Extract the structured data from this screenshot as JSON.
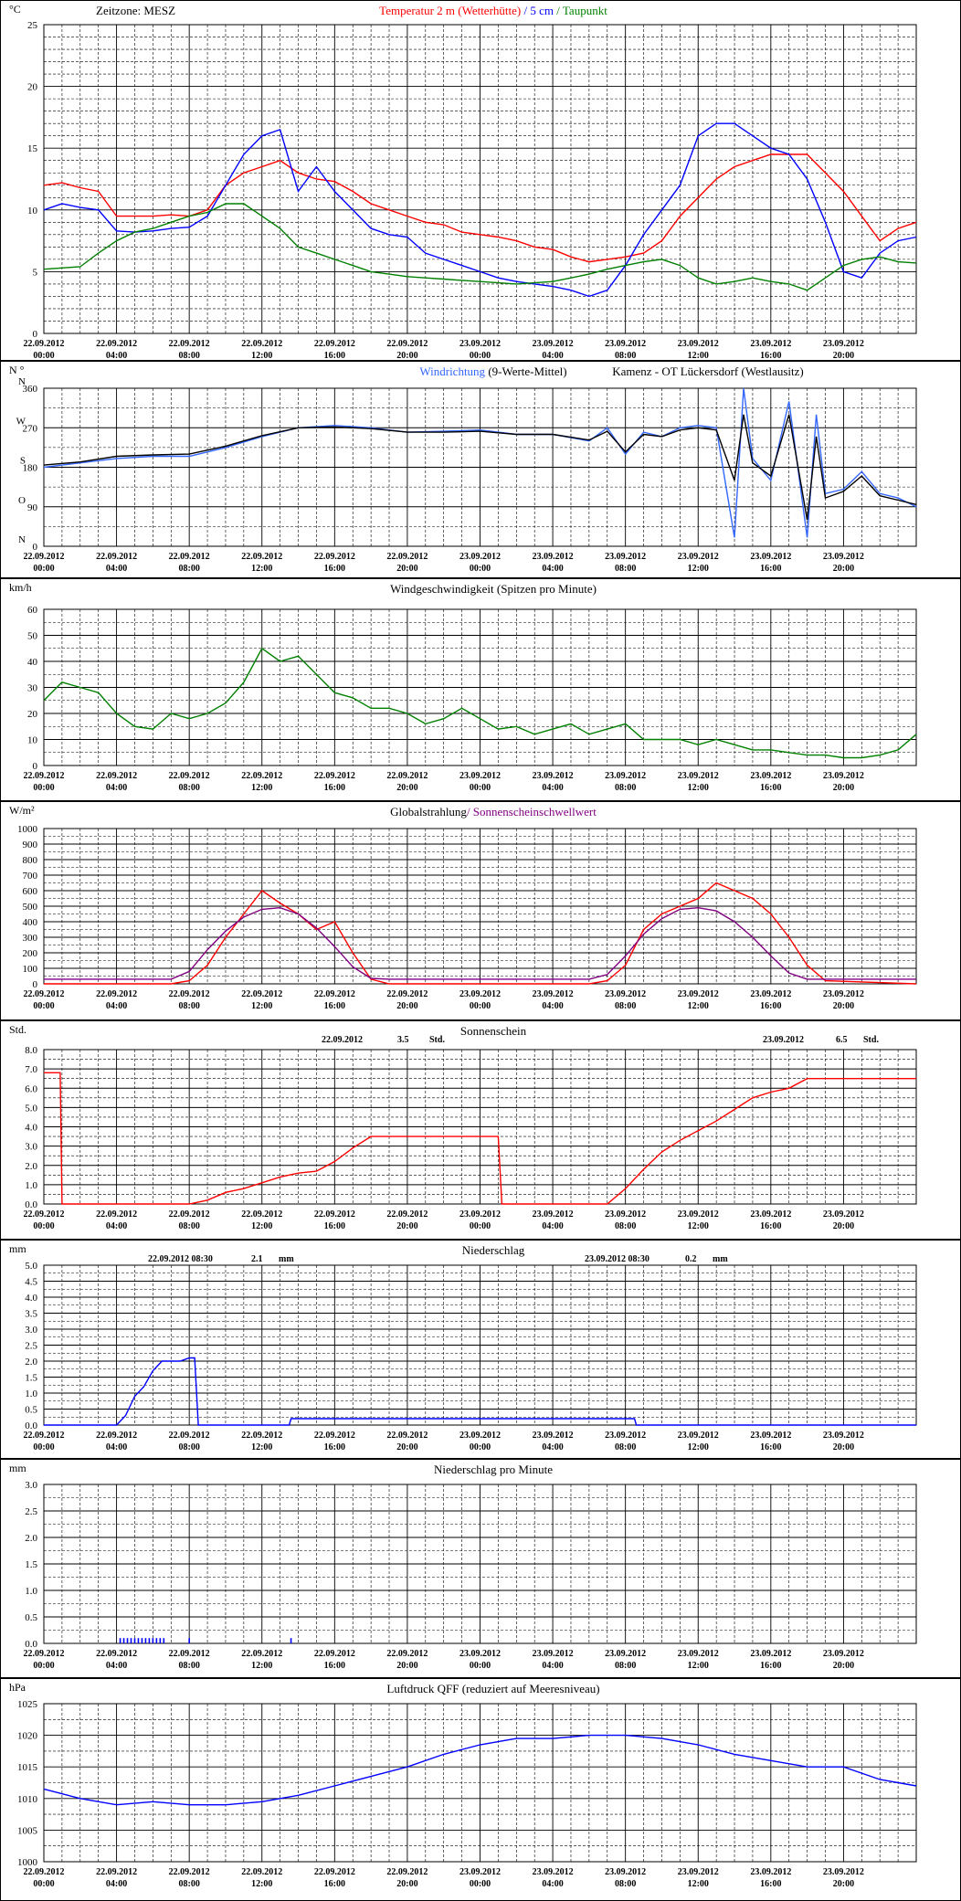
{
  "meta": {
    "timezone": "Zeitzone: MESZ",
    "station": "Kamenz - OT Lückersdorf (Westlausitz)"
  },
  "x_axis": {
    "tick_dates": [
      "22.09.2012",
      "22.09.2012",
      "22.09.2012",
      "22.09.2012",
      "22.09.2012",
      "22.09.2012",
      "23.09.2012",
      "23.09.2012",
      "23.09.2012",
      "23.09.2012",
      "23.09.2012",
      "23.09.2012"
    ],
    "tick_times": [
      "00:00",
      "04:00",
      "08:00",
      "12:00",
      "16:00",
      "20:00",
      "00:00",
      "04:00",
      "08:00",
      "12:00",
      "16:00",
      "20:00"
    ]
  },
  "chart_data": [
    {
      "id": "temperature",
      "type": "line",
      "unit": "°C",
      "title_parts": [
        {
          "text": "Temperatur 2 m (Wetterhütte)",
          "color": "#ff0000"
        },
        {
          "text": " / ",
          "color": "#0000ff"
        },
        {
          "text": "5 cm",
          "color": "#0000ff"
        },
        {
          "text": " / ",
          "color": "#008000"
        },
        {
          "text": "Taupunkt",
          "color": "#008000"
        }
      ],
      "ylim": [
        0,
        25
      ],
      "yticks": [
        "0",
        "5",
        "10",
        "15",
        "20",
        "25"
      ],
      "x_hours": [
        0,
        1,
        2,
        3,
        4,
        5,
        6,
        7,
        8,
        9,
        10,
        11,
        12,
        13,
        14,
        15,
        16,
        17,
        18,
        19,
        20,
        21,
        22,
        23,
        24,
        25,
        26,
        27,
        28,
        29,
        30,
        31,
        32,
        33,
        34,
        35,
        36,
        37,
        38,
        39,
        40,
        41,
        42,
        43,
        44,
        45,
        46,
        47,
        48
      ],
      "series": [
        {
          "name": "Temperatur 2 m (Wetterhütte)",
          "color": "#ff0000",
          "values": [
            12,
            12.2,
            11.8,
            11.5,
            9.5,
            9.5,
            9.5,
            9.6,
            9.5,
            10,
            12,
            13,
            13.5,
            14,
            13,
            12.5,
            12.3,
            11.5,
            10.5,
            10,
            9.5,
            9,
            8.8,
            8.2,
            8,
            7.8,
            7.5,
            7,
            6.8,
            6.2,
            5.8,
            6,
            6.2,
            6.5,
            7.5,
            9.5,
            11,
            12.5,
            13.5,
            14,
            14.5,
            14.5,
            14.5,
            13,
            11.5,
            9.5,
            7.5,
            8.5,
            9
          ]
        },
        {
          "name": "5 cm",
          "color": "#0000ff",
          "values": [
            10,
            10.5,
            10.2,
            10,
            8.3,
            8.2,
            8.3,
            8.5,
            8.6,
            9.5,
            12,
            14.5,
            16,
            16.5,
            11.5,
            13.5,
            11.5,
            10,
            8.5,
            8,
            7.8,
            6.5,
            6,
            5.5,
            5,
            4.5,
            4.2,
            4,
            3.8,
            3.5,
            3,
            3.5,
            5.5,
            8,
            10,
            12,
            16,
            17,
            17,
            16,
            15,
            14.5,
            12.5,
            9,
            5,
            4.5,
            6.5,
            7.5,
            7.8
          ]
        },
        {
          "name": "Taupunkt",
          "color": "#008000",
          "values": [
            5.2,
            5.3,
            5.4,
            6.5,
            7.5,
            8.2,
            8.5,
            9,
            9.5,
            9.8,
            10.5,
            10.5,
            9.5,
            8.5,
            7,
            6.5,
            6,
            5.5,
            5,
            4.8,
            4.6,
            4.5,
            4.4,
            4.3,
            4.2,
            4.1,
            4,
            4.1,
            4.2,
            4.5,
            4.8,
            5.2,
            5.5,
            5.8,
            6,
            5.5,
            4.5,
            4,
            4.2,
            4.5,
            4.2,
            4,
            3.5,
            4.5,
            5.5,
            6,
            6.2,
            5.8,
            5.7
          ]
        }
      ]
    },
    {
      "id": "wind_direction",
      "type": "line",
      "unit": "N °",
      "title_parts": [
        {
          "text": "Windrichtung",
          "color": "#3366ff"
        },
        {
          "text": " (9-Werte-Mittel)",
          "color": "#000000"
        }
      ],
      "ylim": [
        0,
        360
      ],
      "yticks": [
        "0",
        "90",
        "180",
        "270",
        "360"
      ],
      "ylabels_dir": [
        "N",
        "O",
        "S",
        "W",
        "N"
      ],
      "x_hours": [
        0,
        2,
        4,
        6,
        8,
        10,
        12,
        14,
        16,
        18,
        20,
        22,
        24,
        26,
        28,
        30,
        31,
        32,
        33,
        34,
        35,
        36,
        37,
        38,
        38.5,
        39,
        40,
        41,
        42,
        42.5,
        43,
        44,
        45,
        46,
        47,
        48
      ],
      "series": [
        {
          "name": "Windrichtung",
          "color": "#3366ff",
          "values": [
            180,
            190,
            200,
            205,
            205,
            225,
            250,
            270,
            275,
            270,
            260,
            262,
            265,
            255,
            255,
            240,
            270,
            210,
            260,
            250,
            270,
            275,
            270,
            20,
            360,
            200,
            150,
            330,
            20,
            300,
            120,
            130,
            170,
            120,
            110,
            90
          ]
        },
        {
          "name": "9-Werte-Mittel",
          "color": "#000000",
          "values": [
            185,
            192,
            205,
            208,
            210,
            228,
            252,
            270,
            272,
            268,
            260,
            260,
            262,
            255,
            255,
            242,
            262,
            215,
            255,
            250,
            265,
            270,
            265,
            150,
            300,
            190,
            160,
            300,
            60,
            250,
            110,
            125,
            160,
            115,
            105,
            95
          ]
        }
      ]
    },
    {
      "id": "wind_speed",
      "type": "line",
      "unit": "km/h",
      "title": "Windgeschwindigkeit (Spitzen pro Minute)",
      "ylim": [
        0,
        60
      ],
      "yticks": [
        "0",
        "10",
        "20",
        "30",
        "40",
        "50",
        "60"
      ],
      "x_hours": [
        0,
        1,
        2,
        3,
        4,
        5,
        6,
        7,
        8,
        9,
        10,
        11,
        12,
        13,
        14,
        15,
        16,
        17,
        18,
        19,
        20,
        21,
        22,
        23,
        24,
        25,
        26,
        27,
        28,
        29,
        30,
        31,
        32,
        33,
        34,
        35,
        36,
        37,
        38,
        39,
        40,
        41,
        42,
        43,
        44,
        45,
        46,
        47,
        48
      ],
      "series": [
        {
          "name": "Windgeschwindigkeit",
          "color": "#008000",
          "values": [
            25,
            32,
            30,
            28,
            20,
            15,
            14,
            20,
            18,
            20,
            24,
            32,
            45,
            40,
            42,
            35,
            28,
            26,
            22,
            22,
            20,
            16,
            18,
            22,
            18,
            14,
            15,
            12,
            14,
            16,
            12,
            14,
            16,
            10,
            10,
            10,
            8,
            10,
            8,
            6,
            6,
            5,
            4,
            4,
            3,
            3,
            4,
            6,
            12
          ]
        }
      ]
    },
    {
      "id": "global_radiation",
      "type": "line",
      "unit": "W/m²",
      "title_parts": [
        {
          "text": "Globalstrahlung",
          "color": "#000000"
        },
        {
          "text": "/ Sonnenscheinschwellwert",
          "color": "#800080"
        }
      ],
      "ylim": [
        0,
        1000
      ],
      "yticks": [
        "0",
        "100",
        "200",
        "300",
        "400",
        "500",
        "600",
        "700",
        "800",
        "900",
        "1000"
      ],
      "x_hours": [
        0,
        6,
        7,
        8,
        9,
        10,
        11,
        12,
        13,
        14,
        15,
        16,
        17,
        18,
        19,
        24,
        30,
        31,
        32,
        33,
        34,
        35,
        36,
        37,
        38,
        39,
        40,
        41,
        42,
        43,
        48
      ],
      "series": [
        {
          "name": "Globalstrahlung",
          "color": "#ff0000",
          "values": [
            0,
            0,
            0,
            20,
            120,
            300,
            450,
            600,
            520,
            450,
            350,
            400,
            200,
            30,
            0,
            0,
            0,
            20,
            120,
            350,
            450,
            500,
            550,
            650,
            600,
            550,
            450,
            300,
            120,
            20,
            0
          ]
        },
        {
          "name": "Sonnenscheinschwellwert",
          "color": "#800080",
          "values": [
            30,
            30,
            30,
            80,
            220,
            340,
            430,
            480,
            490,
            450,
            360,
            240,
            110,
            35,
            30,
            30,
            30,
            60,
            180,
            320,
            420,
            480,
            490,
            470,
            400,
            300,
            180,
            70,
            30,
            30,
            30
          ]
        }
      ]
    },
    {
      "id": "sunshine",
      "type": "line",
      "unit": "Std.",
      "title": "Sonnenschein",
      "summaries": [
        {
          "date": "22.09.2012",
          "value": "3.5",
          "unit": "Std."
        },
        {
          "date": "23.09.2012",
          "value": "6.5",
          "unit": "Std."
        }
      ],
      "ylim": [
        0,
        8
      ],
      "yticks": [
        "0.0",
        "1.0",
        "2.0",
        "3.0",
        "4.0",
        "5.0",
        "6.0",
        "7.0",
        "8.0"
      ],
      "x_hours": [
        0,
        0.9,
        1,
        8,
        9,
        10,
        11,
        12,
        13,
        14,
        15,
        16,
        17,
        18,
        18.5,
        25,
        25.2,
        31,
        32,
        33,
        34,
        35,
        36,
        37,
        38,
        39,
        40,
        41,
        42,
        42.5,
        48
      ],
      "series": [
        {
          "name": "Sonnenschein",
          "color": "#ff0000",
          "values": [
            6.8,
            6.8,
            0,
            0,
            0.2,
            0.6,
            0.8,
            1.1,
            1.4,
            1.6,
            1.7,
            2.2,
            2.9,
            3.5,
            3.5,
            3.5,
            0,
            0,
            0.8,
            1.8,
            2.7,
            3.3,
            3.8,
            4.3,
            4.9,
            5.5,
            5.8,
            6.0,
            6.5,
            6.5,
            6.5
          ]
        }
      ]
    },
    {
      "id": "precipitation",
      "type": "line",
      "unit": "mm",
      "title": "Niederschlag",
      "summaries": [
        {
          "date": "22.09.2012 08:30",
          "value": "2.1",
          "unit": "mm"
        },
        {
          "date": "23.09.2012 08:30",
          "value": "0.2",
          "unit": "mm"
        }
      ],
      "ylim": [
        0,
        5
      ],
      "yticks": [
        "0.0",
        "0.5",
        "1.0",
        "1.5",
        "2.0",
        "2.5",
        "3.0",
        "3.5",
        "4.0",
        "4.5",
        "5.0"
      ],
      "x_hours": [
        0,
        4,
        4.5,
        5,
        5.5,
        6,
        6.5,
        7,
        7.5,
        8,
        8.3,
        8.5,
        13.5,
        13.6,
        32.5,
        32.6,
        48
      ],
      "series": [
        {
          "name": "Niederschlag",
          "color": "#0000ff",
          "values": [
            0,
            0,
            0.3,
            0.9,
            1.2,
            1.7,
            2,
            2,
            2,
            2.1,
            2.1,
            0,
            0,
            0.2,
            0.2,
            0,
            0
          ]
        }
      ]
    },
    {
      "id": "precip_minute",
      "type": "bar",
      "unit": "mm",
      "title": "Niederschlag pro Minute",
      "ylim": [
        0,
        3
      ],
      "yticks": [
        "0.0",
        "0.5",
        "1.0",
        "1.5",
        "2.0",
        "2.5",
        "3.0"
      ],
      "x_hours": [
        4.2,
        4.4,
        4.6,
        4.8,
        5.0,
        5.2,
        5.4,
        5.6,
        5.8,
        6.0,
        6.2,
        6.4,
        6.6,
        8.0,
        13.6
      ],
      "series": [
        {
          "name": "Niederschlag pro Minute",
          "color": "#0000ff",
          "values": [
            0.1,
            0.1,
            0.1,
            0.1,
            0.1,
            0.1,
            0.1,
            0.1,
            0.1,
            0.1,
            0.1,
            0.1,
            0.1,
            0.1,
            0.1
          ]
        }
      ]
    },
    {
      "id": "pressure",
      "type": "line",
      "unit": "hPa",
      "title": "Luftdruck QFF (reduziert auf Meeresniveau)",
      "ylim": [
        1000,
        1025
      ],
      "yticks": [
        "1000",
        "1005",
        "1010",
        "1015",
        "1020",
        "1025"
      ],
      "x_hours": [
        0,
        2,
        4,
        6,
        8,
        10,
        12,
        14,
        16,
        18,
        20,
        22,
        24,
        26,
        28,
        30,
        32,
        34,
        36,
        38,
        40,
        42,
        44,
        46,
        48
      ],
      "series": [
        {
          "name": "Luftdruck QFF",
          "color": "#0000ff",
          "values": [
            1011.5,
            1010,
            1009,
            1009.5,
            1009,
            1009,
            1009.5,
            1010.5,
            1012,
            1013.5,
            1015,
            1017,
            1018.5,
            1019.5,
            1019.5,
            1020,
            1020,
            1019.5,
            1018.5,
            1017,
            1016,
            1015,
            1015,
            1013,
            1012
          ]
        }
      ]
    }
  ]
}
